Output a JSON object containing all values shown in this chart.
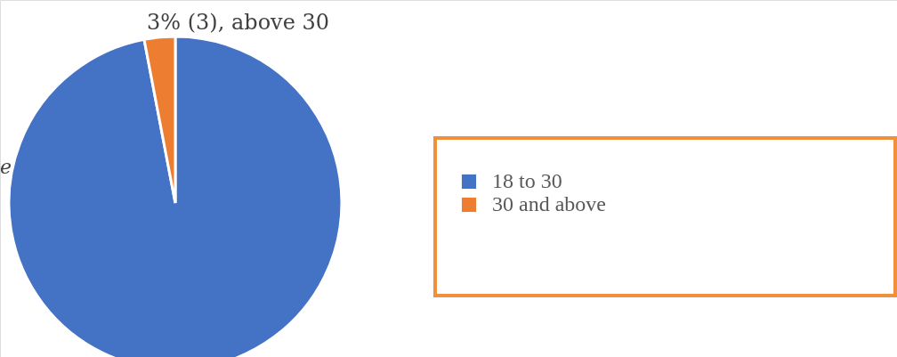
{
  "chart_data": {
    "type": "pie",
    "categories": [
      "18 to 30",
      "30 and above"
    ],
    "values": [
      97,
      3
    ],
    "colors": [
      "#4472c4",
      "#ed7d31"
    ],
    "value_labels": [
      null,
      "3% (3), above 30"
    ],
    "annotations": [
      "e"
    ],
    "legend": "right"
  }
}
